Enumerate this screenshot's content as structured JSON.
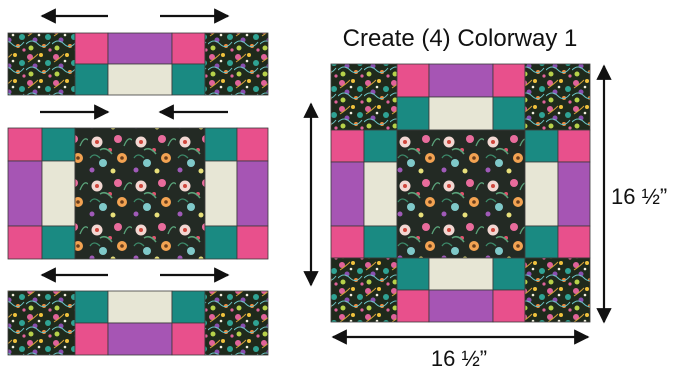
{
  "diagram": {
    "title": "Create (4) Colorway 1",
    "dim_height": "16 ½”",
    "dim_width": "16 ½”"
  },
  "colors": {
    "pink": "#e8508c",
    "teal": "#1a8a82",
    "purple": "#a655b4",
    "cream": "#e7e6d5",
    "seam": "#3a3a3a",
    "arrow": "#111111",
    "fabric_base": "#20251c"
  },
  "fabrics": {
    "busy_print": "busy-floral-print",
    "center_print": "large-floral-print"
  }
}
